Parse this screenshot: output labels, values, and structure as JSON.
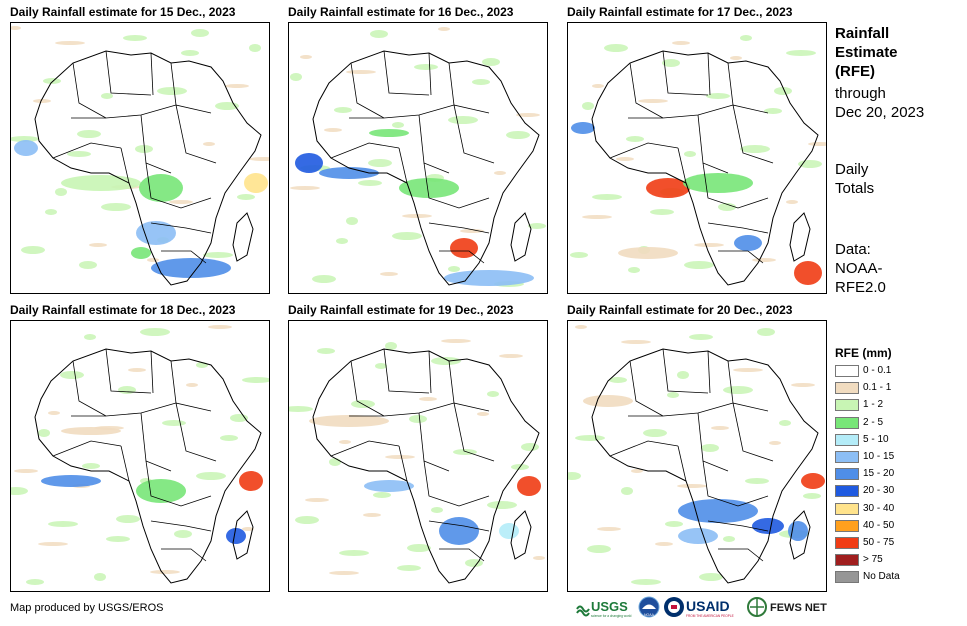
{
  "panels": [
    {
      "title": "Daily Rainfall estimate for 15 Dec., 2023"
    },
    {
      "title": "Daily Rainfall estimate for 16 Dec., 2023"
    },
    {
      "title": "Daily Rainfall estimate for 17 Dec., 2023"
    },
    {
      "title": "Daily Rainfall estimate for 18 Dec., 2023"
    },
    {
      "title": "Daily Rainfall estimate for 19 Dec., 2023"
    },
    {
      "title": "Daily Rainfall estimate for 20 Dec., 2023"
    }
  ],
  "side": {
    "title_line1": "Rainfall",
    "title_line2": "Estimate",
    "title_line3": "(RFE)",
    "through": "through",
    "through_date": "Dec 20, 2023",
    "totals_line1": "Daily",
    "totals_line2": "Totals",
    "data_line1": "Data:",
    "data_line2": "NOAA-",
    "data_line3": "RFE2.0"
  },
  "legend": {
    "title": "RFE (mm)",
    "items": [
      {
        "label": "0 - 0.1",
        "color": "#ffffff"
      },
      {
        "label": "0.1 - 1",
        "color": "#f1dcc0"
      },
      {
        "label": "1 - 2",
        "color": "#c8f5b4"
      },
      {
        "label": "2 - 5",
        "color": "#78e678"
      },
      {
        "label": "5 - 10",
        "color": "#b4ecf8"
      },
      {
        "label": "10 - 15",
        "color": "#8cbef5"
      },
      {
        "label": "15 - 20",
        "color": "#4f8ee8"
      },
      {
        "label": "20 - 30",
        "color": "#1f5ae0"
      },
      {
        "label": "30 - 40",
        "color": "#ffe38c"
      },
      {
        "label": "40 - 50",
        "color": "#ffa01e"
      },
      {
        "label": "50 - 75",
        "color": "#f03c14"
      },
      {
        "label": "> 75",
        "color": "#a01e1e"
      },
      {
        "label": "No Data",
        "color": "#969696"
      }
    ]
  },
  "credit": "Map produced by USGS/EROS",
  "logos": {
    "usgs": "USGS",
    "usgs_tag": "science for a changing world",
    "noaa": "NOAA",
    "usaid": "USAID",
    "usaid_tag": "FROM THE AMERICAN PEOPLE",
    "fews": "FEWS NET"
  }
}
